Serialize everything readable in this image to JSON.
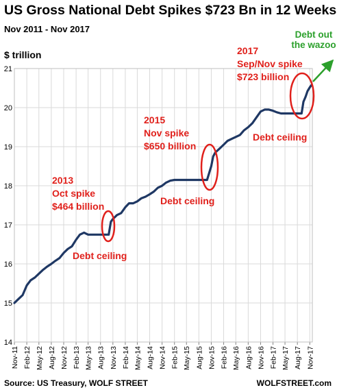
{
  "chart_data": {
    "type": "line",
    "title": "US Gross National Debt Spikes $723 Bn in 12 Weeks",
    "subtitle": "Nov 2011 - Nov 2017",
    "ylabel": "$ trillion",
    "xlabel": "",
    "ylim": [
      14,
      21
    ],
    "yticks": [
      14,
      15,
      16,
      17,
      18,
      19,
      20,
      21
    ],
    "x_tick_labels": [
      "Nov-11",
      "Feb-12",
      "May-12",
      "Aug-12",
      "Nov-12",
      "Feb-13",
      "May-13",
      "Aug-13",
      "Nov-13",
      "Feb-14",
      "May-14",
      "Aug-14",
      "Nov-14",
      "Feb-15",
      "May-15",
      "Aug-15",
      "Nov-15",
      "Feb-16",
      "May-16",
      "Aug-16",
      "Nov-16",
      "Feb-17",
      "May-17",
      "Aug-17",
      "Nov-17"
    ],
    "grid": true,
    "legend": "none",
    "line_color": "#1f3864",
    "series": [
      {
        "x": [
          "2011-11-01",
          "2011-12-01",
          "2012-01-01",
          "2012-02-01",
          "2012-03-01",
          "2012-04-01",
          "2012-05-01",
          "2012-06-01",
          "2012-07-01",
          "2012-08-01",
          "2012-09-01",
          "2012-10-01",
          "2012-11-01",
          "2012-12-01",
          "2013-01-01",
          "2013-02-01",
          "2013-03-01",
          "2013-04-01",
          "2013-05-01",
          "2013-06-01",
          "2013-07-01",
          "2013-08-01",
          "2013-09-01",
          "2013-10-01",
          "2013-10-17",
          "2013-11-01",
          "2013-12-01",
          "2014-01-01",
          "2014-02-01",
          "2014-03-01",
          "2014-04-01",
          "2014-05-01",
          "2014-06-01",
          "2014-07-01",
          "2014-08-01",
          "2014-09-01",
          "2014-10-01",
          "2014-11-01",
          "2014-12-01",
          "2015-01-01",
          "2015-02-01",
          "2015-03-01",
          "2015-04-01",
          "2015-05-01",
          "2015-06-01",
          "2015-07-01",
          "2015-08-01",
          "2015-09-01",
          "2015-10-01",
          "2015-11-01",
          "2015-11-15",
          "2015-12-01",
          "2016-01-01",
          "2016-02-01",
          "2016-03-01",
          "2016-04-01",
          "2016-05-01",
          "2016-06-01",
          "2016-07-01",
          "2016-08-01",
          "2016-09-01",
          "2016-10-01",
          "2016-11-01",
          "2016-12-01",
          "2017-01-01",
          "2017-02-01",
          "2017-03-01",
          "2017-04-01",
          "2017-05-01",
          "2017-06-01",
          "2017-07-01",
          "2017-08-01",
          "2017-09-01",
          "2017-09-15",
          "2017-10-01",
          "2017-10-15",
          "2017-11-01",
          "2017-11-15"
        ],
        "values": [
          15.0,
          15.1,
          15.2,
          15.45,
          15.58,
          15.65,
          15.75,
          15.85,
          15.93,
          16.0,
          16.08,
          16.15,
          16.28,
          16.38,
          16.45,
          16.62,
          16.75,
          16.8,
          16.75,
          16.75,
          16.75,
          16.75,
          16.75,
          16.75,
          17.08,
          17.15,
          17.25,
          17.3,
          17.45,
          17.55,
          17.55,
          17.6,
          17.68,
          17.72,
          17.78,
          17.85,
          17.95,
          18.0,
          18.08,
          18.13,
          18.15,
          18.15,
          18.15,
          18.15,
          18.15,
          18.15,
          18.15,
          18.15,
          18.15,
          18.5,
          18.75,
          18.85,
          18.95,
          19.05,
          19.15,
          19.2,
          19.25,
          19.3,
          19.42,
          19.5,
          19.6,
          19.75,
          19.9,
          19.95,
          19.95,
          19.92,
          19.88,
          19.85,
          19.85,
          19.85,
          19.85,
          19.85,
          19.85,
          20.15,
          20.28,
          20.42,
          20.52,
          20.58
        ]
      }
    ],
    "annotations": [
      {
        "lines": [
          "2013",
          "Oct spike",
          "$464 billion"
        ]
      },
      {
        "lines": [
          "Debt ceiling"
        ]
      },
      {
        "lines": [
          "2015",
          "Nov spike",
          "$650 billion"
        ]
      },
      {
        "lines": [
          "Debt ceiling"
        ]
      },
      {
        "lines": [
          "2017",
          "Sep/Nov spike",
          "$723 billion"
        ]
      },
      {
        "lines": [
          "Debt ceiling"
        ]
      },
      {
        "lines": [
          "Debt out",
          "the wazoo"
        ]
      }
    ]
  },
  "footer": {
    "source": "Source: US Treasury, WOLF STREET",
    "brand": "WOLFSTREET.com"
  }
}
